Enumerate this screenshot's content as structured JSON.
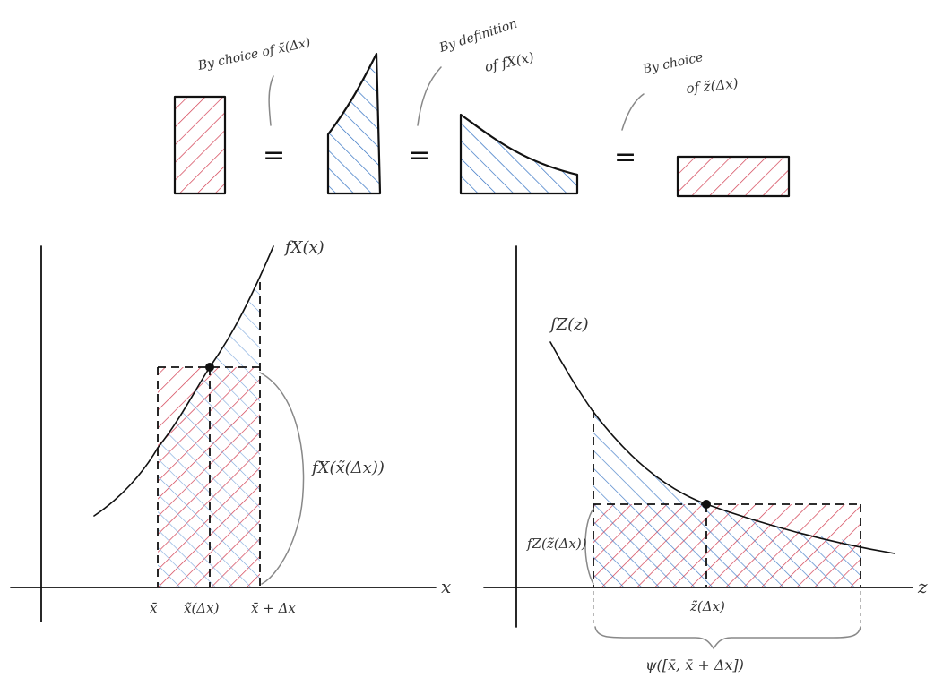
{
  "colors": {
    "red_hatch": "#d23b4f",
    "blue_hatch": "#2f6fc2",
    "ink": "#111111",
    "guide": "#888888"
  },
  "top_row": {
    "annotation_1": "By choice of x̃(Δx)",
    "annotation_2_line1": "By definition",
    "annotation_2_line2": "of fX(x)",
    "annotation_3_line1": "By choice",
    "annotation_3_line2": "of z̃(Δx)",
    "equals_symbol": "="
  },
  "left_plot": {
    "curve_label": "fX(x)",
    "axis_label": "x",
    "height_label": "fX(x̃(Δx))",
    "tick_labels": [
      "x̄",
      "x̃(Δx)",
      "x̄ + Δx"
    ]
  },
  "right_plot": {
    "curve_label": "fZ(z)",
    "axis_label": "z",
    "height_label": "fZ(z̃(Δx))",
    "tick_label": "z̃(Δx)",
    "brace_label": "ψ([x̄, x̄ + Δx])"
  }
}
